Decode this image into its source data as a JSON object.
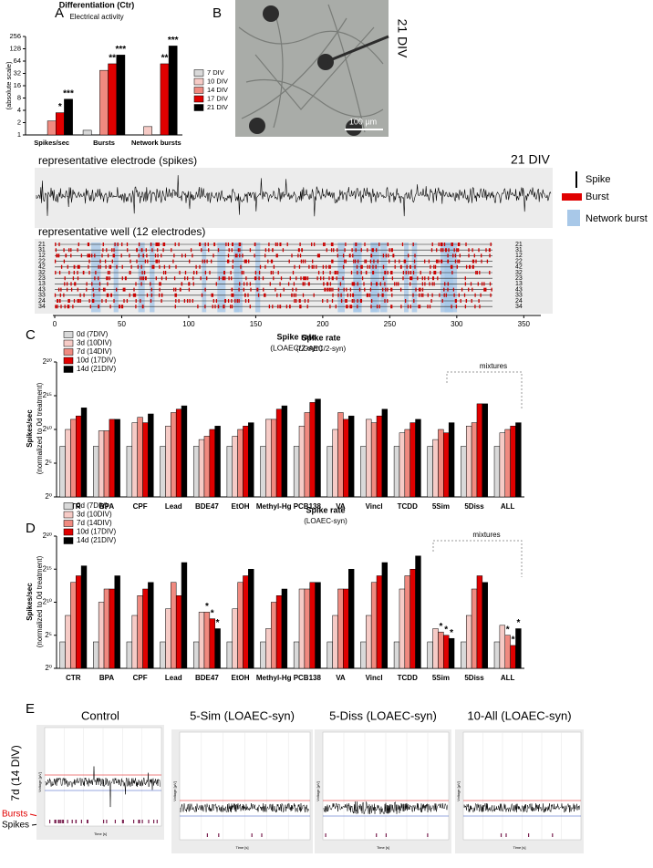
{
  "panels": {
    "label_a": "A",
    "label_b": "B",
    "label_c": "C",
    "label_d": "D",
    "label_e": "E",
    "image_b": {
      "div": "21 DIV",
      "scale": "100 µm"
    },
    "electrode": {
      "title": "representative electrode (spikes)",
      "div": "21 DIV"
    },
    "legend": {
      "spike": "Spike",
      "burst": "Burst",
      "network": "Network burst"
    },
    "well": {
      "title": "representative well (12 electrodes)"
    },
    "e": {
      "titles": [
        "Control",
        "5-Sim (LOAEC-syn)",
        "5-Diss (LOAEC-syn)",
        "10-All (LOAEC-syn)"
      ],
      "row": "7d (14 DIV)",
      "bursts": "Bursts",
      "spikes": "Spikes",
      "time": "Time [s]",
      "voltage": "Voltage [µV]"
    }
  },
  "chart_data": [
    {
      "type": "bar",
      "title": "Differentiation (Ctr)",
      "subtitle": "Electrical activity",
      "ylabel": "(absolute scale)",
      "log_scale": true,
      "categories": [
        "Spikes/sec",
        "Bursts",
        "Network bursts"
      ],
      "ylim": [
        1,
        256
      ],
      "yticks": [
        1,
        2,
        4,
        8,
        16,
        32,
        64,
        128,
        256
      ],
      "series": [
        {
          "name": "7 DIV",
          "color": "#d9d9d9",
          "values": [
            1,
            1.3,
            1
          ]
        },
        {
          "name": "10 DIV",
          "color": "#f6cbc6",
          "values": [
            1,
            1,
            1.6
          ]
        },
        {
          "name": "14 DIV",
          "color": "#f08a80",
          "values": [
            2.2,
            38,
            1
          ]
        },
        {
          "name": "17 DIV",
          "color": "#e00000",
          "values": [
            3.5,
            55,
            55
          ],
          "stars": [
            "*",
            "**",
            "**"
          ]
        },
        {
          "name": "21 DIV",
          "color": "#000000",
          "values": [
            7.5,
            90,
            150
          ],
          "stars": [
            "***",
            "***",
            "***"
          ]
        }
      ]
    },
    {
      "type": "raster",
      "xlim": [
        0,
        360
      ],
      "xticks": [
        0,
        50,
        100,
        150,
        200,
        250,
        300,
        350
      ],
      "rows": [
        "21",
        "31",
        "12",
        "22",
        "42",
        "32",
        "23",
        "13",
        "43",
        "33",
        "24",
        "34"
      ],
      "xlabel": "Spike rate",
      "subtitle": "(LOAEC/2-syn)"
    },
    {
      "type": "bar",
      "title": "Spike rate",
      "subtitle": "(LOAEC/2-syn)",
      "ylabel": "Spikes/sec",
      "ylabel2": "(normalized to 0d treatment)",
      "log_scale": true,
      "annotation": "mixtures",
      "categories": [
        "CTR",
        "BPA",
        "CPF",
        "Lead",
        "BDE47",
        "EtOH",
        "Methyl-Hg",
        "PCB138",
        "VA",
        "Vincl",
        "TCDD",
        "5Sim",
        "5Diss",
        "ALL"
      ],
      "ylim": [
        1,
        1048576
      ],
      "yticks": [
        {
          "value": 1,
          "label": "2⁰"
        },
        {
          "value": 32,
          "label": "2⁵"
        },
        {
          "value": 1024,
          "label": "2¹⁰"
        },
        {
          "value": 32768,
          "label": "2¹⁵"
        },
        {
          "value": 1048576,
          "label": "2²⁰"
        }
      ],
      "series": [
        {
          "name": "0d (7DIV)",
          "color": "#d9d9d9",
          "values": [
            181,
            181,
            181,
            181,
            181,
            181,
            181,
            181,
            181,
            181,
            181,
            181,
            181,
            181
          ]
        },
        {
          "name": "3d (10DIV)",
          "color": "#f6cbc6",
          "values": [
            1024,
            891,
            2048,
            1448,
            362,
            512,
            2896,
            1448,
            1024,
            2896,
            724,
            362,
            1448,
            724
          ]
        },
        {
          "name": "7d (14DIV)",
          "color": "#f08a80",
          "values": [
            2896,
            891,
            3566,
            5793,
            512,
            1024,
            2896,
            5793,
            5793,
            2048,
            1024,
            1024,
            2048,
            1024
          ]
        },
        {
          "name": "10d (17DIV)",
          "color": "#e00000",
          "values": [
            4096,
            2896,
            2048,
            8192,
            1024,
            1448,
            8192,
            16384,
            2896,
            4096,
            2048,
            724,
            14263,
            1448
          ]
        },
        {
          "name": "14d (21DIV)",
          "color": "#000000",
          "values": [
            9410,
            2896,
            5043,
            11585,
            1448,
            2048,
            11585,
            23170,
            4096,
            8192,
            2896,
            2048,
            14263,
            2048
          ]
        }
      ]
    },
    {
      "type": "bar",
      "title": "Spike rate",
      "subtitle": "(LOAEC-syn)",
      "ylabel": "Spikes/sec",
      "ylabel2": "(normalized to 0d treatment)",
      "log_scale": true,
      "annotation": "mixtures",
      "categories": [
        "CTR",
        "BPA",
        "CPF",
        "Lead",
        "BDE47",
        "EtOH",
        "Methyl-Hg",
        "PCB138",
        "VA",
        "Vincl",
        "TCDD",
        "5Sim",
        "5Diss",
        "ALL"
      ],
      "ylim": [
        1,
        1048576
      ],
      "yticks": [
        {
          "value": 1,
          "label": "2⁰"
        },
        {
          "value": 32,
          "label": "2⁵"
        },
        {
          "value": 1024,
          "label": "2¹⁰"
        },
        {
          "value": 32768,
          "label": "2¹⁵"
        },
        {
          "value": 1048576,
          "label": "2²⁰"
        }
      ],
      "series": [
        {
          "name": "0d (7DIV)",
          "color": "#d9d9d9",
          "values": [
            16,
            16,
            16,
            16,
            16,
            16,
            16,
            16,
            16,
            16,
            16,
            16,
            16,
            16
          ]
        },
        {
          "name": "3d (10DIV)",
          "color": "#f6cbc6",
          "values": [
            256,
            1024,
            256,
            512,
            362,
            512,
            64,
            4096,
            256,
            256,
            4096,
            64,
            256,
            91
          ]
        },
        {
          "name": "7d (14DIV)",
          "color": "#f08a80",
          "values": [
            8192,
            4096,
            2048,
            8192,
            362,
            8192,
            1024,
            4096,
            4096,
            8192,
            16384,
            45,
            4096,
            32
          ],
          "stars": [
            null,
            null,
            null,
            null,
            "*",
            null,
            null,
            null,
            null,
            null,
            null,
            "*",
            null,
            "*"
          ]
        },
        {
          "name": "10d (17DIV)",
          "color": "#e00000",
          "values": [
            16384,
            4096,
            4096,
            2048,
            181,
            16384,
            2048,
            8192,
            4096,
            16384,
            32768,
            32,
            16384,
            11
          ],
          "stars": [
            null,
            null,
            null,
            null,
            "*",
            null,
            null,
            null,
            null,
            null,
            null,
            "*",
            null,
            "*"
          ]
        },
        {
          "name": "14d (21DIV)",
          "color": "#000000",
          "values": [
            46341,
            16384,
            8192,
            65536,
            64,
            32768,
            4096,
            8192,
            32768,
            65536,
            131072,
            23,
            8192,
            64
          ],
          "stars": [
            null,
            null,
            null,
            null,
            "*",
            null,
            null,
            null,
            null,
            null,
            null,
            "*",
            null,
            "*"
          ]
        }
      ]
    }
  ]
}
